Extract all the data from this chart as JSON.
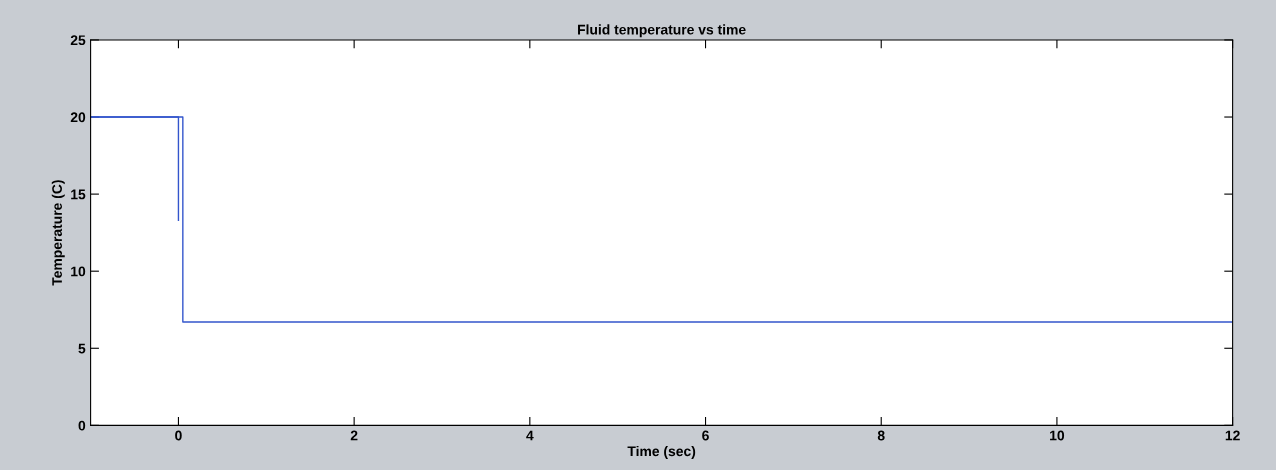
{
  "chart_data": {
    "type": "line",
    "title": "Fluid temperature vs time",
    "xlabel": "Time (sec)",
    "ylabel": "Temperature (C)",
    "series": [
      {
        "color": "#3355cc",
        "x": [
          -1,
          0,
          0
        ],
        "values": [
          20,
          20,
          13.3
        ]
      },
      {
        "color": "#3355cc",
        "x": [
          -1,
          0.05,
          0.05,
          12
        ],
        "values": [
          20,
          20,
          6.7,
          6.7
        ]
      }
    ],
    "xlim": [
      -1,
      12
    ],
    "xticks": [
      0,
      2,
      4,
      6,
      8,
      10,
      12
    ],
    "ylim": [
      0,
      25
    ],
    "yticks": [
      0,
      5,
      10,
      15,
      20,
      25
    ],
    "grid": false,
    "legend": false,
    "marker": "none",
    "line_style": "solid"
  }
}
